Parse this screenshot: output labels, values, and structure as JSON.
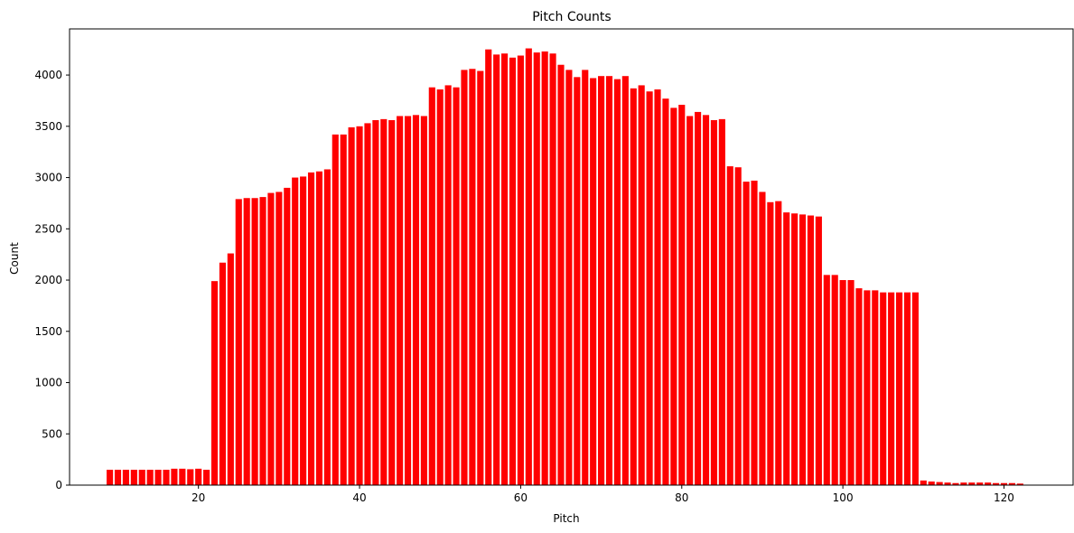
{
  "chart_data": {
    "type": "bar",
    "title": "Pitch Counts",
    "xlabel": "Pitch",
    "ylabel": "Count",
    "color": "#ff0000",
    "xlim": [
      4,
      126
    ],
    "ylim": [
      0,
      4450
    ],
    "xticks": [
      20,
      40,
      60,
      80,
      100,
      120
    ],
    "yticks": [
      0,
      500,
      1000,
      1500,
      2000,
      2500,
      3000,
      3500,
      4000
    ],
    "x_start": 9,
    "values": [
      150,
      150,
      150,
      150,
      150,
      150,
      150,
      150,
      160,
      160,
      155,
      160,
      150,
      1990,
      2170,
      2260,
      2790,
      2800,
      2800,
      2810,
      2850,
      2860,
      2900,
      3000,
      3010,
      3050,
      3060,
      3080,
      3420,
      3420,
      3490,
      3500,
      3530,
      3560,
      3570,
      3560,
      3600,
      3600,
      3610,
      3600,
      3880,
      3860,
      3900,
      3880,
      4050,
      4060,
      4040,
      4250,
      4200,
      4210,
      4170,
      4190,
      4260,
      4220,
      4230,
      4210,
      4100,
      4050,
      3980,
      4050,
      3970,
      3990,
      3990,
      3960,
      3990,
      3870,
      3900,
      3840,
      3860,
      3770,
      3680,
      3710,
      3600,
      3640,
      3610,
      3560,
      3570,
      3110,
      3100,
      2960,
      2970,
      2860,
      2760,
      2770,
      2660,
      2650,
      2640,
      2630,
      2620,
      2050,
      2050,
      2000,
      2000,
      1920,
      1900,
      1900,
      1880,
      1880,
      1880,
      1880,
      1880,
      45,
      35,
      30,
      25,
      20,
      25,
      25,
      25,
      25,
      20,
      20,
      20,
      15
    ]
  }
}
